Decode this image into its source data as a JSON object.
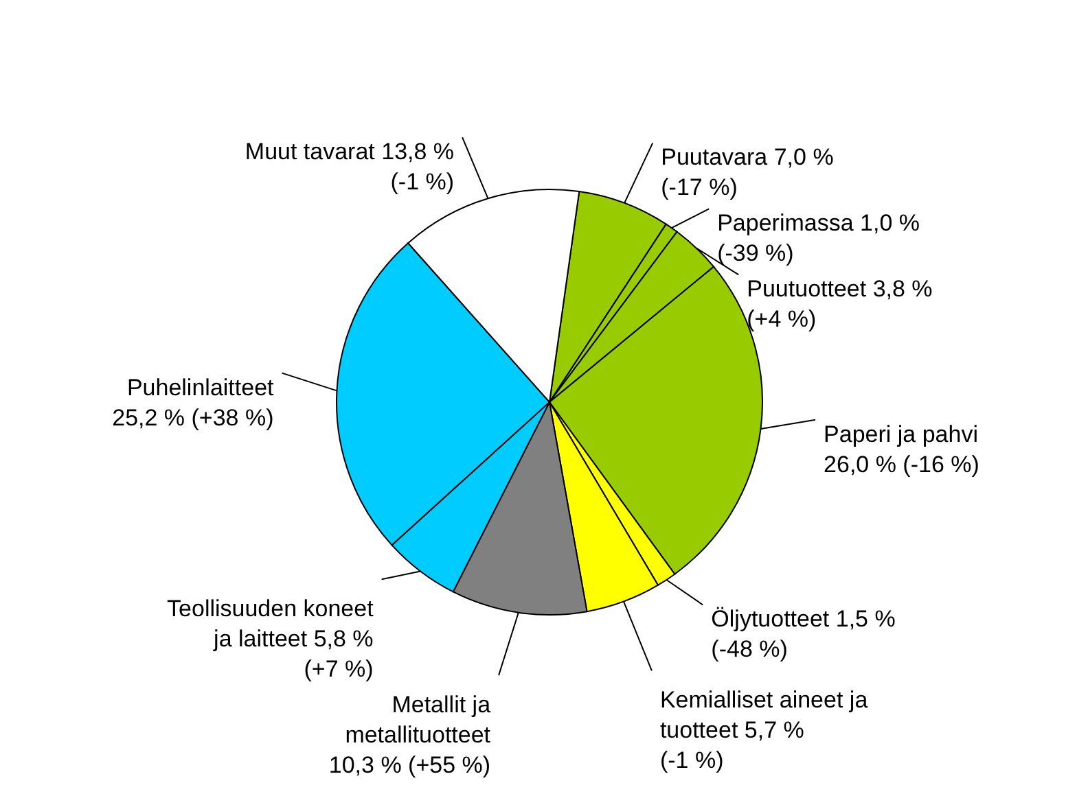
{
  "chart_data": {
    "type": "pie",
    "categories": [
      "Puutavara 7,0 %\n(-17 %)",
      "Paperimassa 1,0 %\n(-39 %)",
      "Puutuotteet 3,8 %\n(+4 %)",
      "Paperi ja pahvi\n26,0 % (-16 %)",
      "Öljytuotteet 1,5 %\n(-48 %)",
      "Kemialliset aineet ja\ntuotteet 5,7 %\n(-1 %)",
      "Metallit ja\nmetallituotteet\n10,3 % (+55 %)",
      "Teollisuuden koneet\nja laitteet 5,8 %\n(+7 %)",
      "Puhelinlaitteet\n25,2 % (+38 %)",
      "Muut tavarat 13,8 %\n(-1 %)"
    ],
    "values": [
      7.0,
      1.0,
      3.8,
      26.0,
      1.5,
      5.7,
      10.3,
      5.8,
      25.2,
      13.8
    ],
    "colors": [
      "#99cc00",
      "#99cc00",
      "#99cc00",
      "#99cc00",
      "#ffff00",
      "#ffff00",
      "#808080",
      "#00ccff",
      "#00ccff",
      "#ffffff"
    ]
  }
}
